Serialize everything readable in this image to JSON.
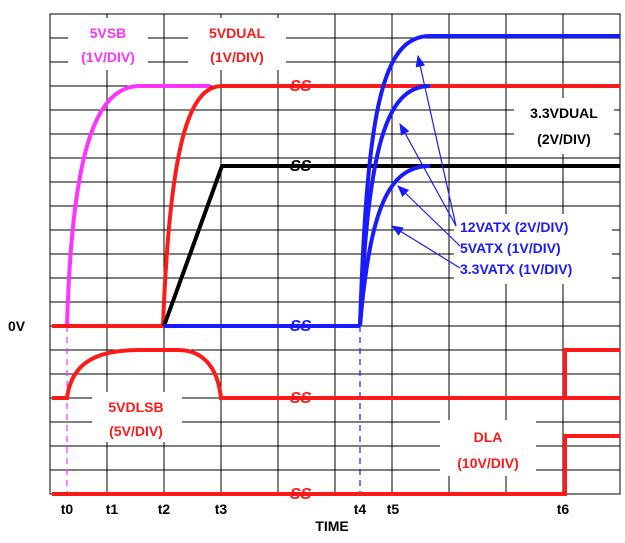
{
  "diagram": {
    "x_axis_label": "TIME",
    "zero_label": "0V",
    "time_markers": [
      "t0",
      "t1",
      "t2",
      "t3",
      "t4",
      "t5",
      "t6"
    ],
    "break_symbol": "SS",
    "signals": {
      "v5sb": {
        "name": "5VSB",
        "scale": "(1V/DIV)",
        "color": "#ff33ff"
      },
      "v5dual": {
        "name": "5VDUAL",
        "scale": "(1V/DIV)",
        "color": "#ff1a1a"
      },
      "v33dual": {
        "name": "3.3VDUAL",
        "scale": "(2V/DIV)",
        "color": "#000000"
      },
      "v12atx": {
        "name": "12VATX (2V/DIV)",
        "color": "#1a1aff"
      },
      "v5atx": {
        "name": "5VATX (1V/DIV)",
        "color": "#1a1aff"
      },
      "v33atx": {
        "name": "3.3VATX (1V/DIV)",
        "color": "#1a1aff"
      },
      "v5dlsb": {
        "name": "5VDLSB",
        "scale": "(5V/DIV)",
        "color": "#ff1a1a"
      },
      "dla": {
        "name": "DLA",
        "scale": "(10V/DIV)",
        "color": "#ff1a1a"
      }
    },
    "colors": {
      "grid": "#000000",
      "red": "#ff1a1a",
      "blue": "#1a1aff",
      "magenta": "#ff33ff",
      "black": "#000000"
    }
  }
}
